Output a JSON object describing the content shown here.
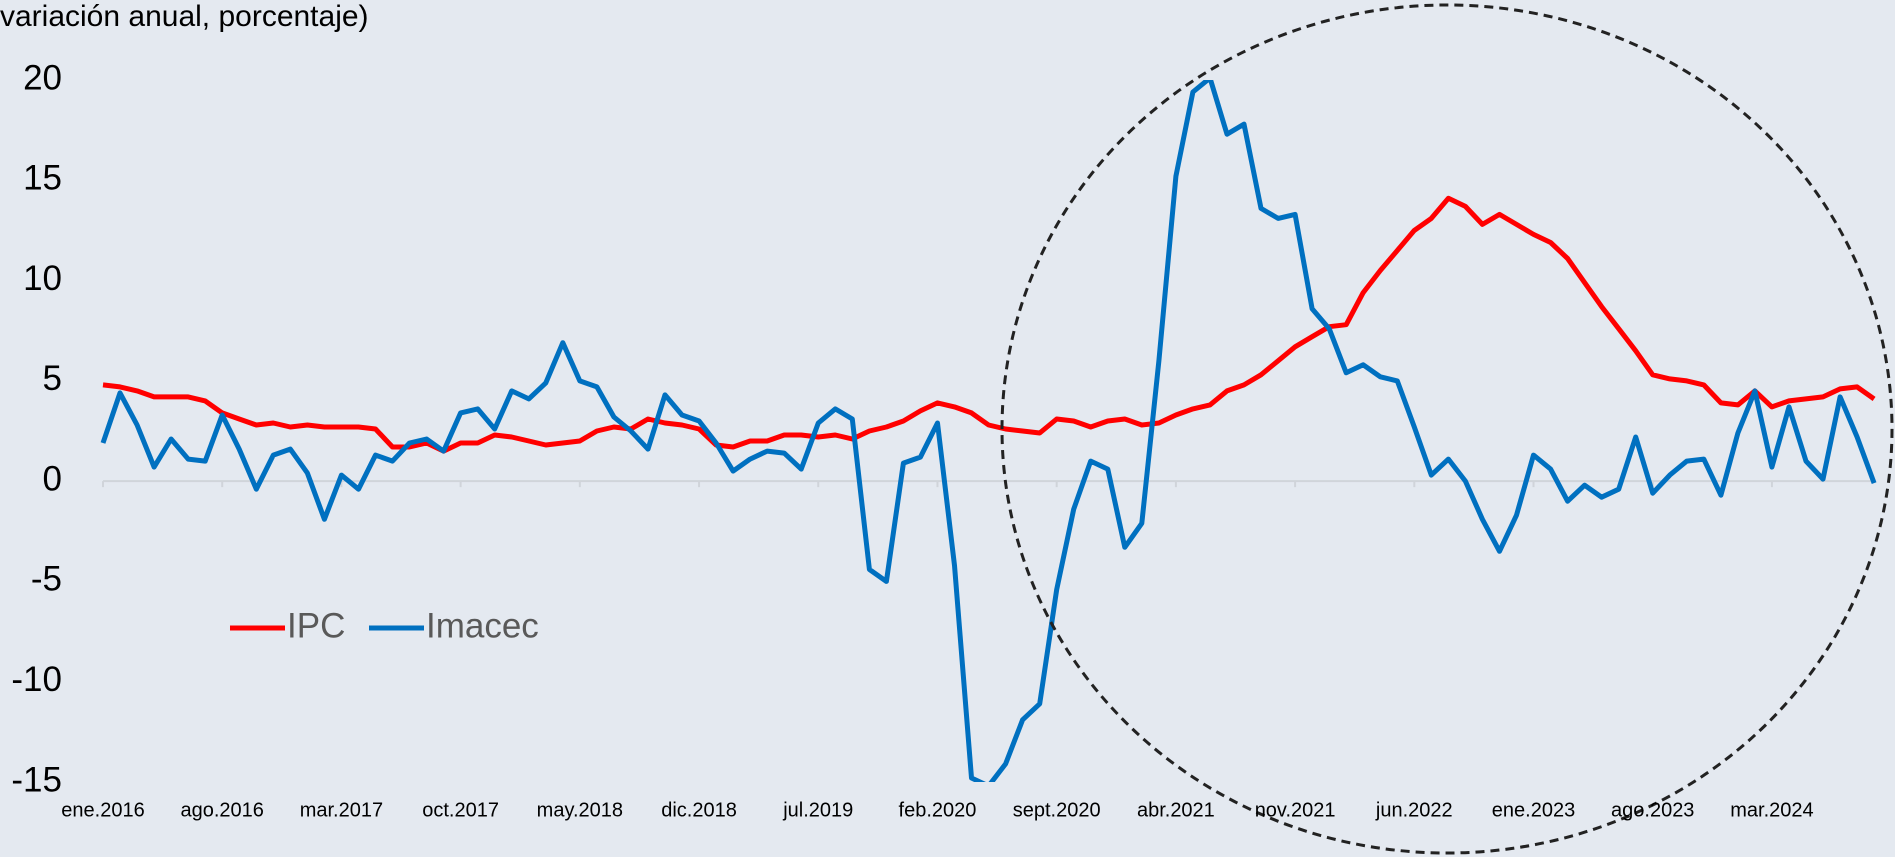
{
  "chart_data": {
    "type": "line",
    "subtitle": "(variación anual, porcentaje)",
    "categories": [
      "ene.2016",
      null,
      null,
      null,
      null,
      null,
      null,
      "ago.2016",
      null,
      null,
      null,
      null,
      null,
      null,
      "mar.2017",
      null,
      null,
      null,
      null,
      null,
      null,
      "oct.2017",
      null,
      null,
      null,
      null,
      null,
      null,
      "may.2018",
      null,
      null,
      null,
      null,
      null,
      null,
      "dic.2018",
      null,
      null,
      null,
      null,
      null,
      null,
      "jul.2019",
      null,
      null,
      null,
      null,
      null,
      null,
      "feb.2020",
      null,
      null,
      null,
      null,
      null,
      null,
      "sept.2020",
      null,
      null,
      null,
      null,
      null,
      null,
      "abr.2021",
      null,
      null,
      null,
      null,
      null,
      null,
      "nov.2021",
      null,
      null,
      null,
      null,
      null,
      null,
      "jun.2022",
      null,
      null,
      null,
      null,
      null,
      null,
      "ene.2023",
      null,
      null,
      null,
      null,
      null,
      null,
      "ago.2023",
      null,
      null,
      null,
      null,
      null,
      null,
      "mar.2024",
      null,
      null,
      null,
      null,
      null,
      null
    ],
    "series": [
      {
        "name": "IPC",
        "color": "#ff0000",
        "values": [
          4.8,
          4.7,
          4.5,
          4.2,
          4.2,
          4.2,
          4.0,
          3.4,
          3.1,
          2.8,
          2.9,
          2.7,
          2.8,
          2.7,
          2.7,
          2.7,
          2.6,
          1.7,
          1.7,
          1.9,
          1.5,
          1.9,
          1.9,
          2.3,
          2.2,
          2.0,
          1.8,
          1.9,
          2.0,
          2.5,
          2.7,
          2.6,
          3.1,
          2.9,
          2.8,
          2.6,
          1.8,
          1.7,
          2.0,
          2.0,
          2.3,
          2.3,
          2.2,
          2.3,
          2.1,
          2.5,
          2.7,
          3.0,
          3.5,
          3.9,
          3.7,
          3.4,
          2.8,
          2.6,
          2.5,
          2.4,
          3.1,
          3.0,
          2.7,
          3.0,
          3.1,
          2.8,
          2.9,
          3.3,
          3.6,
          3.8,
          4.5,
          4.8,
          5.3,
          6.0,
          6.7,
          7.2,
          7.7,
          7.8,
          9.4,
          10.5,
          11.5,
          12.5,
          13.1,
          14.1,
          13.7,
          12.8,
          13.3,
          12.8,
          12.3,
          11.9,
          11.1,
          9.9,
          8.7,
          7.6,
          6.5,
          5.3,
          5.1,
          5.0,
          4.8,
          3.9,
          3.8,
          4.5,
          3.7,
          4.0,
          4.1,
          4.2,
          4.6,
          4.7,
          4.1
        ]
      },
      {
        "name": "Imacec",
        "color": "#0070c0",
        "values": [
          1.9,
          4.4,
          2.8,
          0.7,
          2.1,
          1.1,
          1.0,
          3.3,
          1.6,
          -0.4,
          1.3,
          1.6,
          0.4,
          -1.9,
          0.3,
          -0.4,
          1.3,
          1.0,
          1.9,
          2.1,
          1.5,
          3.4,
          3.6,
          2.6,
          4.5,
          4.1,
          4.9,
          6.9,
          5.0,
          4.7,
          3.2,
          2.5,
          1.6,
          4.3,
          3.3,
          3.0,
          1.9,
          0.5,
          1.1,
          1.5,
          1.4,
          0.6,
          2.9,
          3.6,
          3.1,
          -4.4,
          -5.0,
          0.9,
          1.2,
          2.9,
          -4.2,
          -14.8,
          -15.2,
          -14.1,
          -11.9,
          -11.1,
          -5.4,
          -1.4,
          1.0,
          0.6,
          -3.3,
          -2.1,
          6.0,
          15.2,
          19.4,
          20.1,
          17.3,
          17.8,
          13.6,
          13.1,
          13.3,
          8.6,
          7.6,
          5.4,
          5.8,
          5.2,
          5.0,
          2.7,
          0.3,
          1.1,
          0.0,
          -1.9,
          -3.5,
          -1.7,
          1.3,
          0.6,
          -1.0,
          -0.2,
          -0.8,
          -0.4,
          2.2,
          -0.6,
          0.3,
          1.0,
          1.1,
          -0.7,
          2.4,
          4.5,
          0.7,
          3.7,
          1.0,
          0.1,
          4.2,
          2.2,
          -0.1
        ]
      }
    ],
    "ylim": [
      -15,
      20
    ],
    "yticks": [
      -15,
      -10,
      -5,
      0,
      5,
      10,
      15,
      20
    ],
    "legend": "lower-left"
  }
}
